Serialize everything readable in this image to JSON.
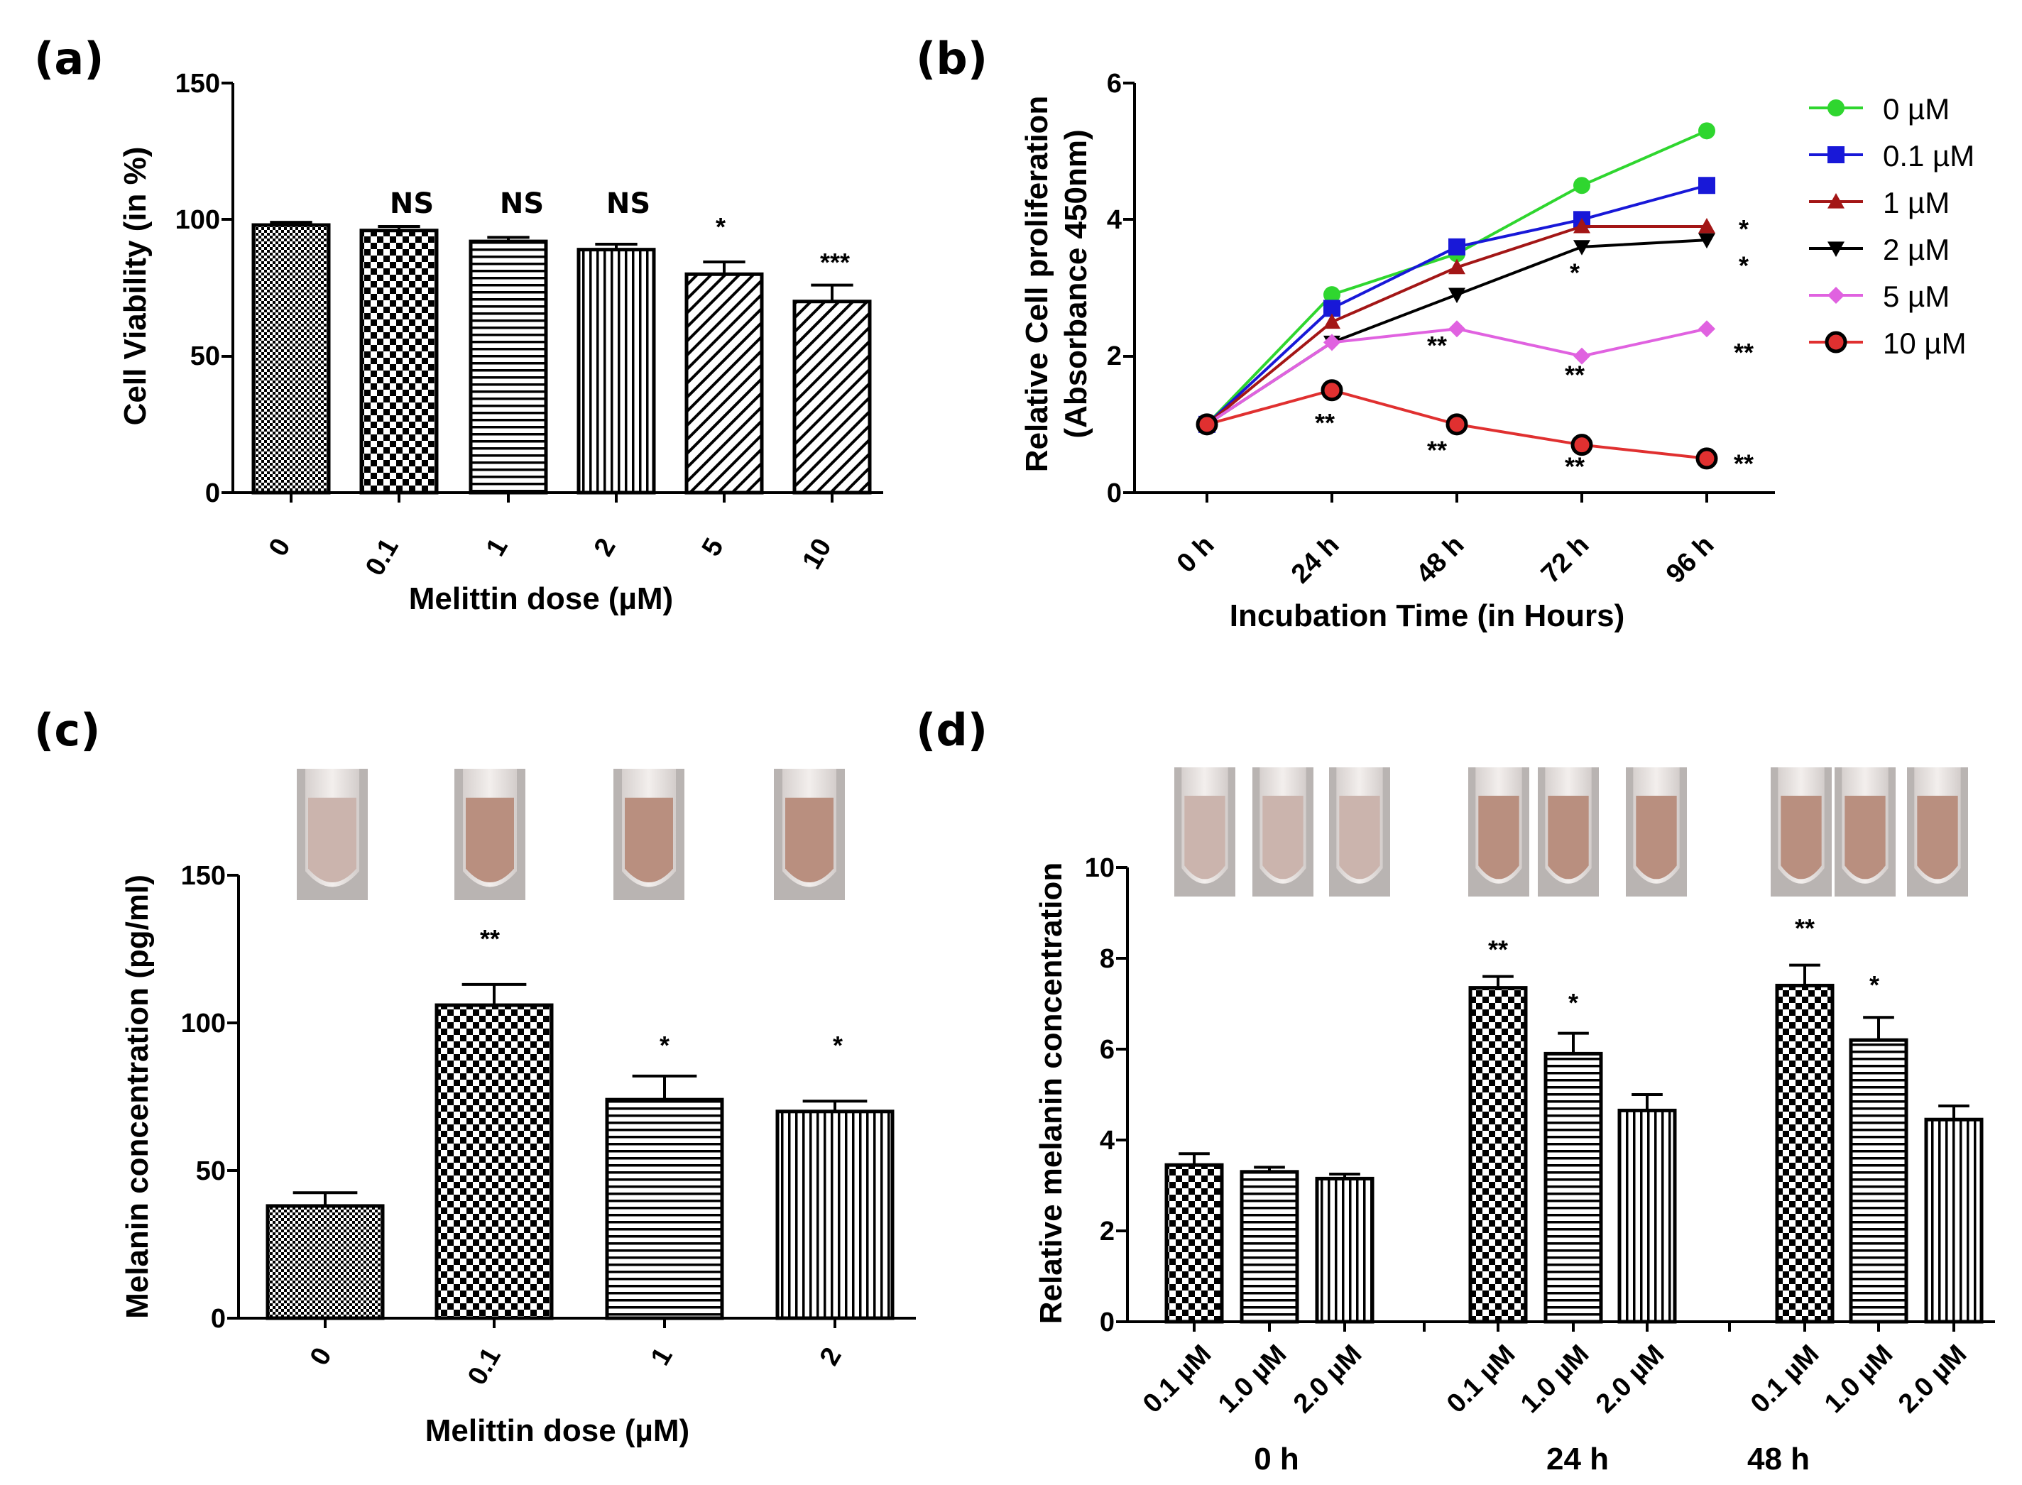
{
  "colors": {
    "axis": "#000000",
    "tube_bg": "#b9b4b2",
    "tube_body": "#e9e2df",
    "tube_liquid_light": "#cbb4ad",
    "tube_liquid_dark": "#b98f7f"
  },
  "chart_data": [
    {
      "panel": "(a)",
      "type": "bar",
      "categories": [
        "0",
        "0.1",
        "1",
        "2",
        "5",
        "10"
      ],
      "values": [
        98,
        96,
        92,
        89,
        80,
        70
      ],
      "errors": [
        1.0,
        1.5,
        1.5,
        2.0,
        4.5,
        6.0
      ],
      "patterns": [
        "fine-checker",
        "checker",
        "hlines",
        "vlines",
        "diag",
        "diag"
      ],
      "significance": [
        "",
        "NS",
        "NS",
        "NS",
        "*",
        "***"
      ],
      "yticks": [
        "0",
        "50",
        "100",
        "150"
      ],
      "ylim": [
        0,
        150
      ],
      "xlabel": "Melittin dose (µM)",
      "ylabel": "Cell Viability (in %)"
    },
    {
      "panel": "(b)",
      "type": "line",
      "categories": [
        "0 h",
        "24 h",
        "48 h",
        "72 h",
        "96 h"
      ],
      "yticks": [
        "0",
        "2",
        "4",
        "6"
      ],
      "ylim": [
        0,
        6
      ],
      "xlabel": "Incubation Time (in Hours)",
      "ylabel_line1": "Relative Cell proliferation",
      "ylabel_line2": "(Absorbance 450nm)",
      "series": [
        {
          "name": "0 µM",
          "color": "#2fd62f",
          "marker": "circle",
          "values": [
            1.0,
            2.9,
            3.5,
            4.5,
            5.3
          ]
        },
        {
          "name": "0.1 µM",
          "color": "#1818d8",
          "marker": "square",
          "values": [
            1.0,
            2.7,
            3.6,
            4.0,
            4.5
          ]
        },
        {
          "name": "1 µM",
          "color": "#a31616",
          "marker": "triangle-up",
          "values": [
            1.0,
            2.5,
            3.3,
            3.9,
            3.9
          ]
        },
        {
          "name": "2 µM",
          "color": "#000000",
          "marker": "triangle-down",
          "values": [
            1.0,
            2.2,
            2.9,
            3.6,
            3.7
          ]
        },
        {
          "name": "5 µM",
          "color": "#e062e0",
          "marker": "diamond",
          "values": [
            1.0,
            2.2,
            2.4,
            2.0,
            2.4
          ]
        },
        {
          "name": "10 µM",
          "color": "#e03030",
          "marker": "circle-outlined",
          "values": [
            1.0,
            1.5,
            1.0,
            0.7,
            0.5
          ]
        }
      ],
      "annotations": [
        {
          "text": "**",
          "x": "24 h",
          "y": 1.02
        },
        {
          "text": "**",
          "x": "48 h",
          "y": 2.15
        },
        {
          "text": "**",
          "x": "48 h",
          "y": 0.62
        },
        {
          "text": "*",
          "x": "72 h",
          "y": 3.22
        },
        {
          "text": "**",
          "x": "72 h",
          "y": 1.72
        },
        {
          "text": "**",
          "x": "72 h",
          "y": 0.38
        },
        {
          "text": "*",
          "x": "96 h",
          "y": 3.32
        },
        {
          "text": "*",
          "x": "96 h",
          "y": 3.86
        },
        {
          "text": "**",
          "x": "96 h",
          "y": 2.05
        },
        {
          "text": "**",
          "x": "96 h",
          "y": 0.42
        }
      ]
    },
    {
      "panel": "(c)",
      "type": "bar",
      "categories": [
        "0",
        "0.1",
        "1",
        "2"
      ],
      "values": [
        38,
        106,
        74,
        70
      ],
      "errors": [
        4.5,
        7,
        8,
        3.5
      ],
      "patterns": [
        "fine-checker",
        "checker",
        "hlines",
        "vlines"
      ],
      "significance": [
        "",
        "**",
        "*",
        "*"
      ],
      "yticks": [
        "0",
        "50",
        "100",
        "150"
      ],
      "ylim": [
        0,
        150
      ],
      "xlabel": "Melittin dose (µM)",
      "ylabel": "Melanin concentration (pg/ml)",
      "tube_shades": [
        "light",
        "dark",
        "dark",
        "dark"
      ]
    },
    {
      "panel": "(d)",
      "type": "bar",
      "groups": [
        "0 h",
        "24 h",
        "48 h"
      ],
      "categories": [
        "0.1 µM",
        "1.0 µM",
        "2.0 µM"
      ],
      "series": [
        {
          "group": "0 h",
          "values": [
            3.45,
            3.3,
            3.15
          ],
          "errors": [
            0.25,
            0.1,
            0.1
          ]
        },
        {
          "group": "24 h",
          "values": [
            7.35,
            5.9,
            4.65
          ],
          "errors": [
            0.25,
            0.45,
            0.35
          ]
        },
        {
          "group": "48 h",
          "values": [
            7.4,
            6.2,
            4.45
          ],
          "errors": [
            0.45,
            0.5,
            0.3
          ]
        }
      ],
      "patterns": [
        "checker",
        "hlines",
        "vlines"
      ],
      "significance": [
        [
          "",
          "",
          ""
        ],
        [
          "**",
          "*",
          ""
        ],
        [
          "**",
          "*",
          ""
        ]
      ],
      "yticks": [
        "0",
        "2",
        "4",
        "6",
        "8",
        "10"
      ],
      "ylim": [
        0,
        10
      ],
      "ylabel": "Relative melanin concentration",
      "tube_shades": [
        "light",
        "light",
        "light",
        "dark",
        "dark",
        "dark",
        "dark",
        "dark",
        "dark"
      ]
    }
  ]
}
